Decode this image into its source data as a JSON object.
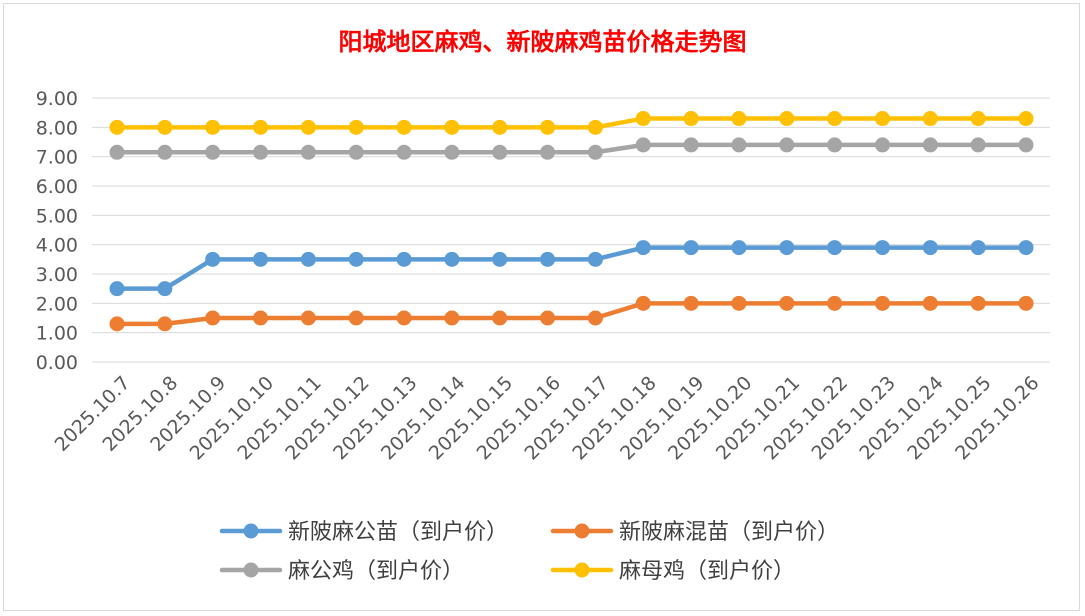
{
  "chart_data": {
    "type": "line",
    "title": "阳城地区麻鸡、新陂麻鸡苗价格走势图",
    "xlabel": "",
    "ylabel": "",
    "ylim": [
      0,
      9
    ],
    "y_ticks": [
      "0.00",
      "1.00",
      "2.00",
      "3.00",
      "4.00",
      "5.00",
      "6.00",
      "7.00",
      "8.00",
      "9.00"
    ],
    "grid": true,
    "legend_position": "bottom",
    "categories": [
      "2025.10.7",
      "2025.10.8",
      "2025.10.9",
      "2025.10.10",
      "2025.10.11",
      "2025.10.12",
      "2025.10.13",
      "2025.10.14",
      "2025.10.15",
      "2025.10.16",
      "2025.10.17",
      "2025.10.18",
      "2025.10.19",
      "2025.10.20",
      "2025.10.21",
      "2025.10.22",
      "2025.10.23",
      "2025.10.24",
      "2025.10.25",
      "2025.10.26"
    ],
    "series": [
      {
        "name": "新陂麻公苗（到户价）",
        "color": "#5b9bd5",
        "values": [
          2.5,
          2.5,
          3.5,
          3.5,
          3.5,
          3.5,
          3.5,
          3.5,
          3.5,
          3.5,
          3.5,
          3.9,
          3.9,
          3.9,
          3.9,
          3.9,
          3.9,
          3.9,
          3.9,
          3.9
        ]
      },
      {
        "name": "新陂麻混苗（到户价）",
        "color": "#ed7d31",
        "values": [
          1.3,
          1.3,
          1.5,
          1.5,
          1.5,
          1.5,
          1.5,
          1.5,
          1.5,
          1.5,
          1.5,
          2.0,
          2.0,
          2.0,
          2.0,
          2.0,
          2.0,
          2.0,
          2.0,
          2.0
        ]
      },
      {
        "name": "麻公鸡（到户价）",
        "color": "#a5a5a5",
        "values": [
          7.15,
          7.15,
          7.15,
          7.15,
          7.15,
          7.15,
          7.15,
          7.15,
          7.15,
          7.15,
          7.15,
          7.4,
          7.4,
          7.4,
          7.4,
          7.4,
          7.4,
          7.4,
          7.4,
          7.4
        ]
      },
      {
        "name": "麻母鸡（到户价）",
        "color": "#ffc000",
        "values": [
          8.0,
          8.0,
          8.0,
          8.0,
          8.0,
          8.0,
          8.0,
          8.0,
          8.0,
          8.0,
          8.0,
          8.3,
          8.3,
          8.3,
          8.3,
          8.3,
          8.3,
          8.3,
          8.3,
          8.3
        ]
      }
    ]
  }
}
